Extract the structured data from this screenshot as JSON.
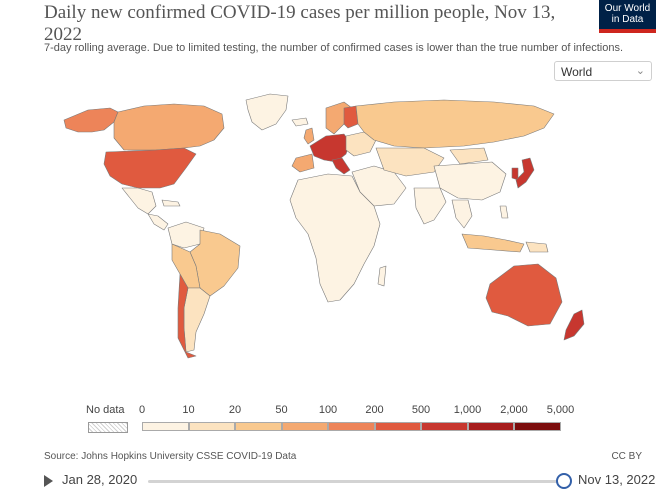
{
  "header": {
    "title": "Daily new confirmed COVID-19 cases per million people, Nov 13, 2022",
    "subtitle": "7-day rolling average. Due to limited testing, the number of confirmed cases is lower than the true number of infections.",
    "logo_line1": "Our World",
    "logo_line2": "in Data"
  },
  "controls": {
    "region_selected": "World"
  },
  "legend": {
    "nodata_label": "No data",
    "ticks": [
      "0",
      "10",
      "20",
      "50",
      "100",
      "200",
      "500",
      "1,000",
      "2,000",
      "5,000"
    ],
    "bins": [
      {
        "color": "#fdf3e3"
      },
      {
        "color": "#fce3c0"
      },
      {
        "color": "#f9c98f"
      },
      {
        "color": "#f4a971"
      },
      {
        "color": "#ed8459"
      },
      {
        "color": "#e05a3f"
      },
      {
        "color": "#c7372f"
      },
      {
        "color": "#a71d1d"
      },
      {
        "color": "#7c0d0d"
      }
    ]
  },
  "footer": {
    "source": "Source: Johns Hopkins University CSSE COVID-19 Data",
    "license": "CC BY"
  },
  "timeline": {
    "start_date": "Jan 28, 2020",
    "end_date": "Nov 13, 2022"
  },
  "map_colors": {
    "nodata": "#f2f2f2",
    "bin0": "#fdf3e3",
    "bin1": "#fce3c0",
    "bin2": "#f9c98f",
    "bin3": "#f4a971",
    "bin4": "#ed8459",
    "bin5": "#e05a3f",
    "bin6": "#c7372f"
  }
}
